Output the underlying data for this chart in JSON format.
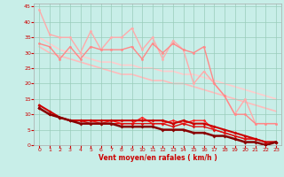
{
  "xlabel": "Vent moyen/en rafales ( km/h )",
  "bg_color": "#c8eee8",
  "grid_color": "#99ccbb",
  "xlim": [
    -0.5,
    23.5
  ],
  "ylim": [
    0,
    46
  ],
  "yticks": [
    0,
    5,
    10,
    15,
    20,
    25,
    30,
    35,
    40,
    45
  ],
  "xticks": [
    0,
    1,
    2,
    3,
    4,
    5,
    6,
    7,
    8,
    9,
    10,
    11,
    12,
    13,
    14,
    15,
    16,
    17,
    18,
    19,
    20,
    21,
    22,
    23
  ],
  "series": [
    {
      "x": [
        0,
        1,
        2,
        3,
        4,
        5,
        6,
        7,
        8,
        9,
        10,
        11,
        12,
        13,
        14,
        15,
        16,
        17,
        18,
        19,
        20,
        21,
        22,
        23
      ],
      "y": [
        44,
        36,
        35,
        35,
        30,
        37,
        31,
        35,
        35,
        38,
        31,
        35,
        28,
        34,
        31,
        20,
        24,
        20,
        16,
        10,
        15,
        7,
        7,
        7
      ],
      "color": "#ffaaaa",
      "lw": 1.0,
      "marker": "o",
      "ms": 2.0,
      "zorder": 2
    },
    {
      "x": [
        0,
        1,
        2,
        3,
        4,
        5,
        6,
        7,
        8,
        9,
        10,
        11,
        12,
        13,
        14,
        15,
        16,
        17,
        18,
        19,
        20,
        21,
        22,
        23
      ],
      "y": [
        33,
        32,
        28,
        32,
        28,
        32,
        31,
        31,
        31,
        32,
        28,
        33,
        30,
        33,
        31,
        30,
        32,
        20,
        16,
        10,
        10,
        7,
        7,
        7
      ],
      "color": "#ff8888",
      "lw": 1.0,
      "marker": "o",
      "ms": 2.0,
      "zorder": 2
    },
    {
      "x": [
        0,
        1,
        2,
        3,
        4,
        5,
        6,
        7,
        8,
        9,
        10,
        11,
        12,
        13,
        14,
        15,
        16,
        17,
        18,
        19,
        20,
        21,
        22,
        23
      ],
      "y": [
        35,
        33,
        31,
        30,
        29,
        28,
        27,
        27,
        26,
        26,
        25,
        25,
        24,
        24,
        23,
        23,
        22,
        21,
        20,
        19,
        18,
        17,
        16,
        15
      ],
      "color": "#ffcccc",
      "lw": 1.2,
      "marker": null,
      "ms": 0,
      "zorder": 1
    },
    {
      "x": [
        0,
        1,
        2,
        3,
        4,
        5,
        6,
        7,
        8,
        9,
        10,
        11,
        12,
        13,
        14,
        15,
        16,
        17,
        18,
        19,
        20,
        21,
        22,
        23
      ],
      "y": [
        32,
        30,
        29,
        28,
        27,
        26,
        25,
        24,
        23,
        23,
        22,
        21,
        21,
        20,
        20,
        19,
        18,
        17,
        16,
        15,
        14,
        13,
        12,
        11
      ],
      "color": "#ffbbbb",
      "lw": 1.2,
      "marker": null,
      "ms": 0,
      "zorder": 1
    },
    {
      "x": [
        0,
        1,
        2,
        3,
        4,
        5,
        6,
        7,
        8,
        9,
        10,
        11,
        12,
        13,
        14,
        15,
        16,
        17,
        18,
        19,
        20,
        21,
        22,
        23
      ],
      "y": [
        13,
        11,
        9,
        8,
        8,
        8,
        8,
        8,
        8,
        8,
        8,
        8,
        8,
        7,
        8,
        7,
        7,
        6,
        5,
        4,
        3,
        2,
        1,
        1
      ],
      "color": "#cc0000",
      "lw": 1.5,
      "marker": "D",
      "ms": 2.0,
      "zorder": 4
    },
    {
      "x": [
        0,
        1,
        2,
        3,
        4,
        5,
        6,
        7,
        8,
        9,
        10,
        11,
        12,
        13,
        14,
        15,
        16,
        17,
        18,
        19,
        20,
        21,
        22,
        23
      ],
      "y": [
        12,
        10,
        9,
        8,
        8,
        8,
        7,
        8,
        7,
        7,
        9,
        7,
        7,
        8,
        7,
        8,
        8,
        5,
        4,
        3,
        2,
        2,
        1,
        1
      ],
      "color": "#ff2222",
      "lw": 1.0,
      "marker": "D",
      "ms": 1.8,
      "zorder": 3
    },
    {
      "x": [
        0,
        1,
        2,
        3,
        4,
        5,
        6,
        7,
        8,
        9,
        10,
        11,
        12,
        13,
        14,
        15,
        16,
        17,
        18,
        19,
        20,
        21,
        22,
        23
      ],
      "y": [
        12,
        10,
        9,
        8,
        8,
        7,
        7,
        7,
        7,
        7,
        7,
        7,
        7,
        6,
        7,
        6,
        6,
        5,
        4,
        3,
        2,
        2,
        1,
        1
      ],
      "color": "#dd1111",
      "lw": 1.0,
      "marker": "D",
      "ms": 1.8,
      "zorder": 3
    },
    {
      "x": [
        0,
        1,
        2,
        3,
        4,
        5,
        6,
        7,
        8,
        9,
        10,
        11,
        12,
        13,
        14,
        15,
        16,
        17,
        18,
        19,
        20,
        21,
        22,
        23
      ],
      "y": [
        12,
        10,
        9,
        8,
        7,
        7,
        7,
        7,
        6,
        6,
        6,
        6,
        5,
        5,
        5,
        4,
        4,
        3,
        3,
        2,
        1,
        1,
        0,
        1
      ],
      "color": "#880000",
      "lw": 1.8,
      "marker": "D",
      "ms": 2.0,
      "zorder": 5
    }
  ]
}
